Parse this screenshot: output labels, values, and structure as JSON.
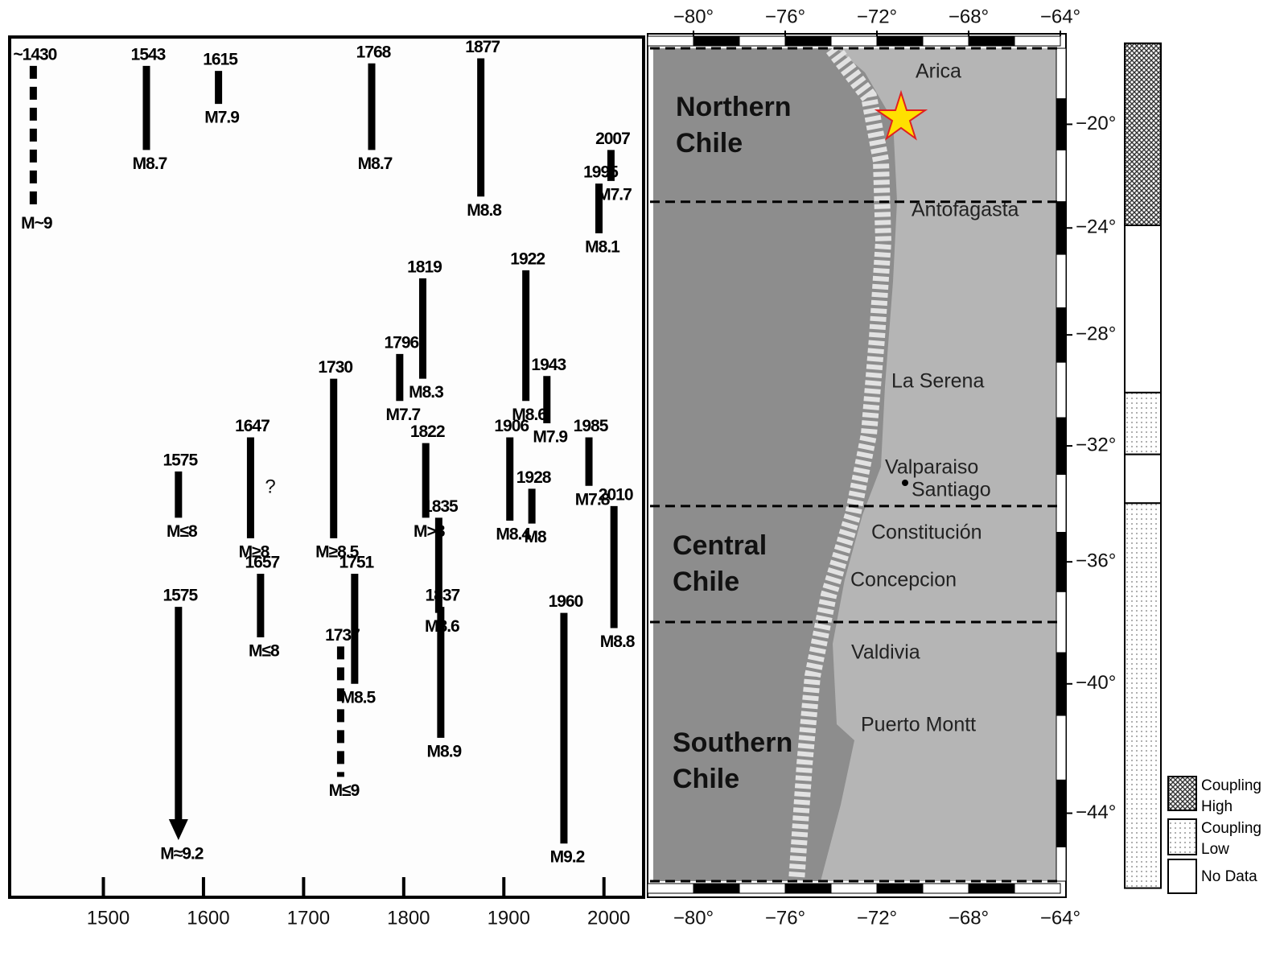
{
  "chart_data": [
    {
      "type": "rupture",
      "xlim": [
        1408,
        2038
      ],
      "xticks": [
        1500,
        1600,
        1700,
        1800,
        1900,
        2000
      ],
      "ylim": [
        -17,
        -46
      ],
      "events": [
        {
          "year": {
            "value": 1430,
            "label": "~1430"
          },
          "magnitude": "M~9",
          "lat": [
            -17.7,
            -23.3
          ],
          "style": "dashed"
        },
        {
          "year": 1543,
          "magnitude": "M8.7",
          "lat": [
            -17.7,
            -21.0
          ],
          "style": "solid"
        },
        {
          "year": 1615,
          "magnitude": "M7.9",
          "lat": [
            -17.9,
            -19.2
          ],
          "style": "solid"
        },
        {
          "year": 1768,
          "magnitude": "M8.7",
          "lat": [
            -17.6,
            -21.0
          ],
          "style": "solid"
        },
        {
          "year": 1877,
          "magnitude": "M8.8",
          "lat": [
            -17.4,
            -22.8
          ],
          "style": "solid"
        },
        {
          "year": 2007,
          "magnitude": "M7.7",
          "lat": [
            -21.0,
            -22.2
          ],
          "style": "solid"
        },
        {
          "year": 1995,
          "magnitude": "M8.1",
          "lat": [
            -22.3,
            -24.2
          ],
          "style": "solid"
        },
        {
          "year": 1819,
          "magnitude": "M8.3",
          "lat": [
            -25.9,
            -29.6
          ],
          "style": "solid"
        },
        {
          "year": 1922,
          "magnitude": "M8.6",
          "lat": [
            -25.6,
            -30.4
          ],
          "style": "solid"
        },
        {
          "year": 1796,
          "magnitude": "M7.7",
          "lat": [
            -28.7,
            -30.4
          ],
          "style": "solid"
        },
        {
          "year": 1943,
          "magnitude": "M7.9",
          "lat": [
            -29.5,
            -31.2
          ],
          "style": "solid"
        },
        {
          "year": 1730,
          "magnitude": "M≥8.5",
          "lat": [
            -29.6,
            -35.2
          ],
          "style": "solid"
        },
        {
          "year": 1647,
          "magnitude": "M≥8",
          "lat": [
            -31.7,
            -35.2
          ],
          "style": "solid"
        },
        {
          "year": 1575,
          "magnitude": "M≤8",
          "lat": [
            -32.9,
            -34.5
          ],
          "style": "solid"
        },
        {
          "year": 1822,
          "magnitude": "M>8",
          "lat": [
            -31.9,
            -34.5
          ],
          "style": "solid"
        },
        {
          "year": 1906,
          "magnitude": "M8.4",
          "lat": [
            -31.7,
            -34.6
          ],
          "style": "solid"
        },
        {
          "year": 1985,
          "magnitude": "M7.8",
          "lat": [
            -31.7,
            -33.4
          ],
          "style": "solid"
        },
        {
          "year": 1928,
          "magnitude": "M8",
          "lat": [
            -33.5,
            -34.7
          ],
          "style": "solid"
        },
        {
          "year": 2010,
          "magnitude": "M8.8",
          "lat": [
            -34.1,
            -38.2
          ],
          "style": "solid"
        },
        {
          "year": 1835,
          "magnitude": "M8.6",
          "lat": [
            -34.5,
            -37.7
          ],
          "style": "solid"
        },
        {
          "year": 1657,
          "magnitude": "M≤8",
          "lat": [
            -36.4,
            -38.5
          ],
          "style": "solid"
        },
        {
          "year": 1751,
          "magnitude": "M8.5",
          "lat": [
            -36.4,
            -40.0
          ],
          "style": "solid"
        },
        {
          "year": 1837,
          "magnitude": "M8.9",
          "lat": [
            -37.5,
            -41.7
          ],
          "style": "solid"
        },
        {
          "year": 1737,
          "magnitude": "M≤9",
          "lat": [
            -38.8,
            -42.9
          ],
          "style": "dashed"
        },
        {
          "year": 1575,
          "magnitude": "M≈9.2",
          "lat": [
            -37.5,
            -44.8
          ],
          "style": "arrow"
        },
        {
          "year": 1960,
          "magnitude": "M9.2",
          "lat": [
            -37.7,
            -44.9
          ],
          "style": "solid"
        }
      ],
      "annotation": "?"
    },
    {
      "type": "map",
      "xlim": [
        -82,
        -64
      ],
      "ylim": [
        -17,
        -46
      ],
      "xticks": [
        {
          "value": -80,
          "label": "−80°"
        },
        {
          "value": -76,
          "label": "−76°"
        },
        {
          "value": -72,
          "label": "−72°"
        },
        {
          "value": -68,
          "label": "−68°"
        },
        {
          "value": -64,
          "label": "−64°"
        }
      ],
      "yticks": [
        {
          "value": -20,
          "label": "−20°"
        },
        {
          "value": -24,
          "label": "−24°"
        },
        {
          "value": -28,
          "label": "−28°"
        },
        {
          "value": -32,
          "label": "−32°"
        },
        {
          "value": -36,
          "label": "−36°"
        },
        {
          "value": -40,
          "label": "−40°"
        },
        {
          "value": -44,
          "label": "−44°"
        }
      ],
      "boundaries": [
        -23.0,
        -34.1,
        -38.0
      ],
      "regions": [
        {
          "lines": [
            "Northern",
            "Chile"
          ]
        },
        {
          "lines": [
            "Central",
            "Chile"
          ]
        },
        {
          "lines": [
            "Southern",
            "Chile"
          ]
        }
      ],
      "cities": [
        "Arica",
        "Antofagasta",
        "La Serena",
        "Valparaiso",
        "Santiago",
        "Constitución",
        "Concepcion",
        "Valdivia",
        "Puerto Montt"
      ]
    },
    {
      "type": "strip",
      "ylim": [
        -17,
        -46
      ],
      "segments": [
        {
          "kind": "high",
          "lat": [
            -16.8,
            -23.9
          ]
        },
        {
          "kind": "none",
          "lat": [
            -23.9,
            -30.1
          ]
        },
        {
          "kind": "low",
          "lat": [
            -30.1,
            -32.3
          ]
        },
        {
          "kind": "none",
          "lat": [
            -32.3,
            -34.0
          ]
        },
        {
          "kind": "low",
          "lat": [
            -34.0,
            -46.2
          ]
        }
      ],
      "legend": [
        {
          "kind": "high",
          "lines": [
            "Coupling",
            "High"
          ]
        },
        {
          "kind": "low",
          "lines": [
            "Coupling",
            "Low"
          ]
        },
        {
          "kind": "none",
          "lines": [
            "No Data"
          ]
        }
      ]
    }
  ]
}
